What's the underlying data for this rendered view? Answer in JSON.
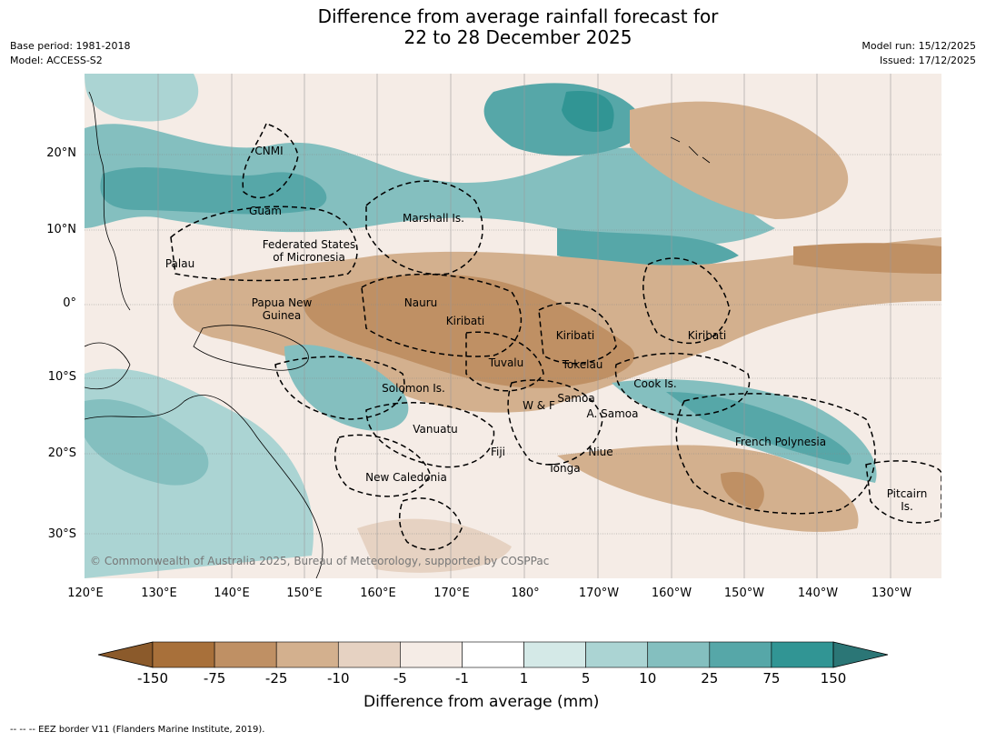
{
  "title_line1": "Difference from average rainfall forecast for",
  "title_line2": "22 to 28 December 2025",
  "base_period": "Base period: 1981-2018",
  "model": "Model: ACCESS-S2",
  "model_run": "Model run: 15/12/2025",
  "issued": "Issued: 17/12/2025",
  "lat_labels": [
    "20°N",
    "10°N",
    "0°",
    "10°S",
    "20°S",
    "30°S"
  ],
  "lon_labels": [
    "120°E",
    "130°E",
    "140°E",
    "150°E",
    "160°E",
    "170°E",
    "180°",
    "170°W",
    "160°W",
    "150°W",
    "140°W",
    "130°W"
  ],
  "places": {
    "cnmi": "CNMI",
    "guam": "Guam",
    "marshall": "Marshall Is.",
    "fsm1": "Federated States",
    "fsm2": "of Micronesia",
    "palau": "Palau",
    "png1": "Papua New",
    "png2": "Guinea",
    "nauru": "Nauru",
    "kiribati_w": "Kiribati",
    "kiribati_c": "Kiribati",
    "kiribati_e": "Kiribati",
    "tuvalu": "Tuvalu",
    "tokelau": "Tokelau",
    "cook": "Cook Is.",
    "solomon": "Solomon Is.",
    "wf": "W & F",
    "samoa": "Samoa",
    "asamoa": "A. Samoa",
    "vanuatu": "Vanuatu",
    "fiji": "Fiji",
    "niue": "Niue",
    "tonga": "Tonga",
    "newcal": "New Caledonia",
    "frpoly": "French Polynesia",
    "pitcairn1": "Pitcairn",
    "pitcairn2": "Is."
  },
  "copyright": "© Commonwealth of Australia 2025, Bureau of Meteorology, supported by COSPPac",
  "colorbar": {
    "title": "Difference from average (mm)",
    "labels": [
      "-150",
      "-75",
      "-25",
      "-10",
      "-5",
      "-1",
      "1",
      "5",
      "10",
      "25",
      "75",
      "150"
    ],
    "colors": [
      "#a8703a",
      "#bf9064",
      "#d3b08e",
      "#e6d2c2",
      "#f5ece6",
      "#ffffff",
      "#d4e9e7",
      "#abd4d3",
      "#84bfbf",
      "#56a7a8",
      "#319594"
    ],
    "under_color": "#8b5a2b",
    "over_color": "#2b7676"
  },
  "footnote": "--  --  -- EEZ border V11 (Flanders Marine Institute, 2019)."
}
